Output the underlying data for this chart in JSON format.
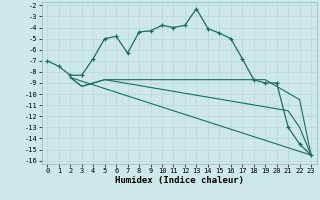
{
  "title": "",
  "xlabel": "Humidex (Indice chaleur)",
  "background_color": "#cce8e8",
  "line_color": "#1e6b5e",
  "xlim": [
    -0.5,
    23.5
  ],
  "ylim": [
    -16.3,
    -1.7
  ],
  "xticks": [
    0,
    1,
    2,
    3,
    4,
    5,
    6,
    7,
    8,
    9,
    10,
    11,
    12,
    13,
    14,
    15,
    16,
    17,
    18,
    19,
    20,
    21,
    22,
    23
  ],
  "yticks": [
    -2,
    -3,
    -4,
    -5,
    -6,
    -7,
    -8,
    -9,
    -10,
    -11,
    -12,
    -13,
    -14,
    -15,
    -16
  ],
  "line1_x": [
    0,
    1,
    2,
    3,
    4,
    5,
    6,
    7,
    8,
    9,
    10,
    11,
    12,
    13,
    14,
    15,
    16,
    17,
    18,
    19,
    20,
    21,
    22,
    23
  ],
  "line1_y": [
    -7.0,
    -7.5,
    -8.3,
    -8.3,
    -6.8,
    -5.0,
    -4.8,
    -6.3,
    -4.4,
    -4.3,
    -3.8,
    -4.0,
    -3.8,
    -2.3,
    -4.1,
    -4.5,
    -5.0,
    -6.8,
    -8.7,
    -9.0,
    -9.0,
    -13.0,
    -14.5,
    -15.5
  ],
  "line2_x": [
    2,
    3,
    5,
    19,
    22,
    23
  ],
  "line2_y": [
    -8.5,
    -9.3,
    -8.7,
    -8.7,
    -10.5,
    -15.5
  ],
  "line3_x": [
    2,
    3,
    5,
    21,
    22,
    23
  ],
  "line3_y": [
    -8.5,
    -9.3,
    -8.7,
    -11.5,
    -13.0,
    -15.5
  ],
  "line4_x": [
    2,
    23
  ],
  "line4_y": [
    -8.5,
    -15.5
  ],
  "grid_color": "#b8d8d8",
  "xlabel_fontsize": 6.5,
  "tick_fontsize": 5.0
}
